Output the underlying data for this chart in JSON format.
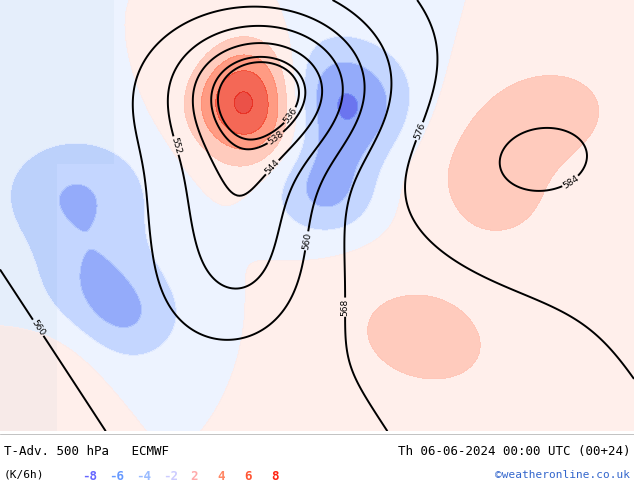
{
  "title_left": "T-Adv. 500 hPa   ECMWF",
  "title_right": "Th 06-06-2024 00:00 UTC (00+24)",
  "unit_label": "(K/6h)",
  "legend_values": [
    "-8",
    "-6",
    "-4",
    "-2",
    "2",
    "4",
    "6",
    "8"
  ],
  "legend_colors": [
    "#6666ff",
    "#6699ff",
    "#99bbff",
    "#ccccff",
    "#ffaaaa",
    "#ff8866",
    "#ff5533",
    "#ff2211"
  ],
  "copyright": "©weatheronline.co.uk",
  "map_bg": "#c8e8c8",
  "text_color": "#000000",
  "title_fontsize": 9,
  "label_fontsize": 8,
  "legend_fontsize": 9
}
